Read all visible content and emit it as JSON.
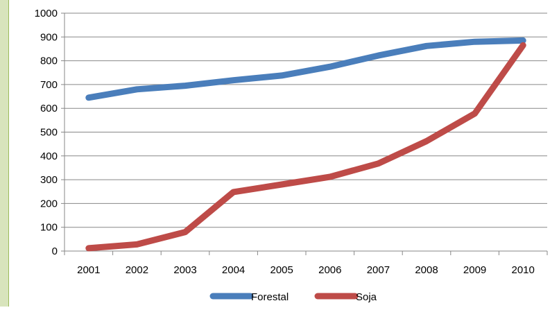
{
  "chart_data": {
    "type": "line",
    "title": "",
    "xlabel": "",
    "ylabel": "",
    "categories": [
      "2001",
      "2002",
      "2003",
      "2004",
      "2005",
      "2006",
      "2007",
      "2008",
      "2009",
      "2010"
    ],
    "ylim": [
      0,
      1000
    ],
    "yticks": [
      0,
      100,
      200,
      300,
      400,
      500,
      600,
      700,
      800,
      900,
      1000
    ],
    "grid": true,
    "legend_position": "bottom",
    "series": [
      {
        "name": "Forestal",
        "color": "#4a7ebb",
        "values": [
          645,
          680,
          695,
          718,
          738,
          775,
          822,
          862,
          880,
          885
        ]
      },
      {
        "name": "Soja",
        "color": "#be4b48",
        "values": [
          12,
          28,
          80,
          248,
          280,
          312,
          368,
          462,
          578,
          865
        ]
      }
    ]
  }
}
